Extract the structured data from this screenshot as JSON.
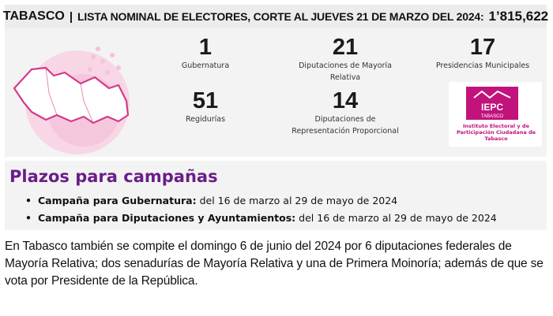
{
  "header": {
    "state": "TABASCO",
    "separator": "|",
    "label": "LISTA NOMINAL DE ELECTORES, CORTE AL JUEVES 21 DE MARZO DEL 2024:",
    "total": "1’815,622"
  },
  "stats": [
    {
      "number": "1",
      "caption": "Gubernatura"
    },
    {
      "number": "21",
      "caption": "Diputaciones de Mayoría Relativa"
    },
    {
      "number": "17",
      "caption": "Presidencias Municipales"
    },
    {
      "number": "51",
      "caption": "Regidurías"
    },
    {
      "number": "14",
      "caption": "Diputaciones de Representación Proporcional"
    }
  ],
  "logo": {
    "acronym": "IEPC",
    "sub": "TABASCO",
    "caption": "Instituto Electoral y de Participación Ciudadana de Tabasco",
    "color": "#c2127b"
  },
  "plazos": {
    "title": "Plazos para campañas",
    "items": [
      {
        "label": "Campaña para Gubernatura:",
        "value": "del 16 de marzo al 29 de mayo de 2024"
      },
      {
        "label": "Campaña para Diputaciones y Ayuntamientos:",
        "value": "del 16 de marzo al 29 de mayo de 2024"
      }
    ]
  },
  "note": "En Tabasco también se compite el domingo 6 de junio del 2024 por 6 diputaciones federales de Mayoría Relativa; dos senadurías de Mayoría Relativa y una de Primera Moinoría; además de que se vota por Presidente de la República.",
  "colors": {
    "accent_purple": "#6a1e87",
    "accent_pink": "#c2127b",
    "panel_bg": "#f3f3f3"
  }
}
